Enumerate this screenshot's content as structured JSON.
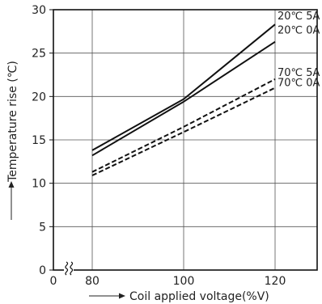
{
  "chart_data": {
    "type": "line",
    "xlabel": "Coil applied voltage(%V)",
    "ylabel": "Temperature rise (℃)",
    "x_ticks": [
      "0",
      "80",
      "100",
      "120"
    ],
    "y_ticks": [
      "0",
      "5",
      "10",
      "15",
      "20",
      "25",
      "30"
    ],
    "xlim": [
      80,
      130
    ],
    "ylim": [
      0,
      30
    ],
    "x_axis_break": true,
    "grid": true,
    "series": [
      {
        "name": "20℃ 5A",
        "style": "solid",
        "x": [
          80,
          100,
          120
        ],
        "y": [
          13.8,
          19.7,
          28.3
        ]
      },
      {
        "name": "20℃ 0A",
        "style": "solid",
        "x": [
          80,
          100,
          120
        ],
        "y": [
          13.2,
          19.4,
          26.3
        ]
      },
      {
        "name": "70℃ 5A",
        "style": "dashed",
        "x": [
          80,
          100,
          120
        ],
        "y": [
          11.3,
          16.5,
          22.0
        ]
      },
      {
        "name": "70℃ 0A",
        "style": "dashed",
        "x": [
          80,
          100,
          120
        ],
        "y": [
          10.9,
          15.9,
          21.0
        ]
      }
    ]
  }
}
